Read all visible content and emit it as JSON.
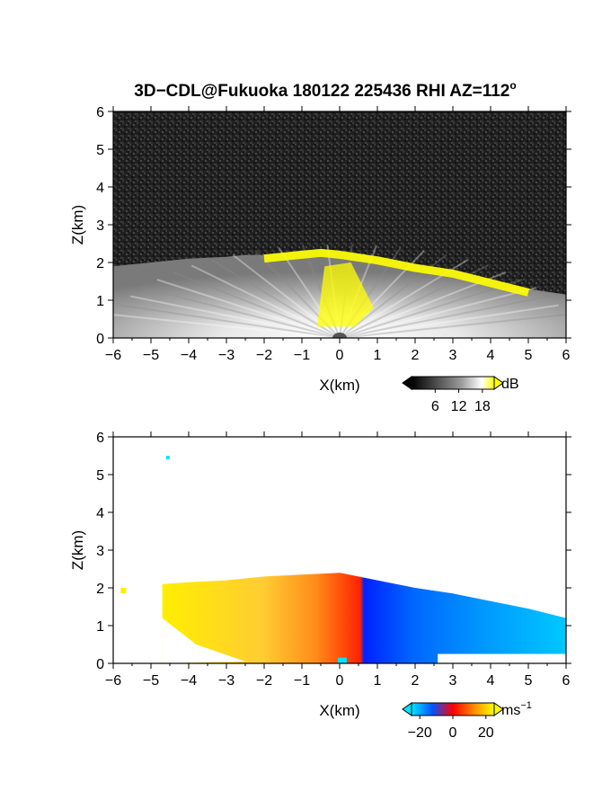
{
  "figure": {
    "title": "3D−CDL@Fukuoka 180122 225436 RHI AZ=112",
    "title_superscript": "o"
  },
  "chart_data": [
    {
      "type": "heatmap",
      "panel": "reflectivity",
      "xlabel": "X(km)",
      "ylabel": "Z(km)",
      "xlim": [
        -6,
        6
      ],
      "ylim": [
        0,
        6
      ],
      "xticks": [
        "−6",
        "−5",
        "−4",
        "−3",
        "−2",
        "−1",
        "0",
        "1",
        "2",
        "3",
        "4",
        "5",
        "6"
      ],
      "yticks": [
        "0",
        "1",
        "2",
        "3",
        "4",
        "5",
        "6"
      ],
      "echo_top_km": [
        {
          "x": -6.0,
          "z": 1.9
        },
        {
          "x": -5.0,
          "z": 2.0
        },
        {
          "x": -4.0,
          "z": 2.1
        },
        {
          "x": -3.0,
          "z": 2.15
        },
        {
          "x": -2.5,
          "z": 2.2
        },
        {
          "x": -2.0,
          "z": 2.2
        },
        {
          "x": -1.0,
          "z": 2.3
        },
        {
          "x": -0.5,
          "z": 2.35
        },
        {
          "x": 0.0,
          "z": 2.3
        },
        {
          "x": 1.0,
          "z": 2.15
        },
        {
          "x": 2.0,
          "z": 1.95
        },
        {
          "x": 3.0,
          "z": 1.8
        },
        {
          "x": 4.0,
          "z": 1.55
        },
        {
          "x": 5.0,
          "z": 1.3
        },
        {
          "x": 6.0,
          "z": 1.15
        }
      ],
      "colorbar": {
        "unit": "dB",
        "tick_labels": [
          "6",
          "12",
          "18"
        ],
        "range": [
          0,
          21
        ],
        "colors": [
          "#000000",
          "#ffffff",
          "#ffff00"
        ]
      }
    },
    {
      "type": "heatmap",
      "panel": "doppler_velocity",
      "xlabel": "X(km)",
      "ylabel": "Z(km)",
      "xlim": [
        -6,
        6
      ],
      "ylim": [
        0,
        6
      ],
      "xticks": [
        "−6",
        "−5",
        "−4",
        "−3",
        "−2",
        "−1",
        "0",
        "1",
        "2",
        "3",
        "4",
        "5",
        "6"
      ],
      "yticks": [
        "0",
        "1",
        "2",
        "3",
        "4",
        "5",
        "6"
      ],
      "echo_top_km": [
        {
          "x": -4.7,
          "z": 2.1
        },
        {
          "x": -4.0,
          "z": 2.15
        },
        {
          "x": -3.0,
          "z": 2.2
        },
        {
          "x": -2.0,
          "z": 2.3
        },
        {
          "x": -1.0,
          "z": 2.35
        },
        {
          "x": 0.0,
          "z": 2.4
        },
        {
          "x": 1.0,
          "z": 2.2
        },
        {
          "x": 2.0,
          "z": 2.0
        },
        {
          "x": 3.0,
          "z": 1.85
        },
        {
          "x": 4.0,
          "z": 1.65
        },
        {
          "x": 5.0,
          "z": 1.45
        },
        {
          "x": 6.0,
          "z": 1.2
        }
      ],
      "colorbar": {
        "unit": "ms",
        "unit_superscript": "−1",
        "tick_labels": [
          "−20",
          "0",
          "20"
        ],
        "range": [
          -25,
          25
        ],
        "colors": [
          "#00e5ff",
          "#0033ff",
          "#ff0000",
          "#ff9900",
          "#ffff00"
        ]
      }
    }
  ]
}
